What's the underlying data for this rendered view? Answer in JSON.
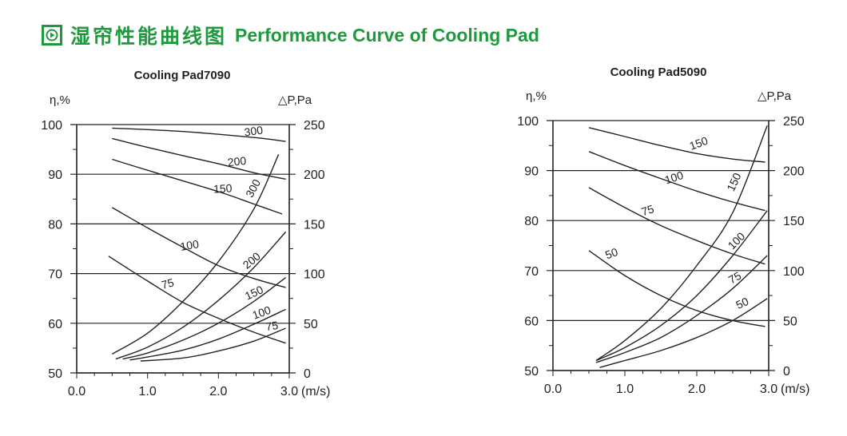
{
  "header": {
    "icon": "play-arrow-icon",
    "title_cn": "湿帘性能曲线图",
    "title_en": "Performance Curve of Cooling Pad",
    "color": "#1e9a3c"
  },
  "chart_data": [
    {
      "type": "line",
      "title": "Cooling Pad7090",
      "xlabel": "(m/s)",
      "ylabel_left": "η,%",
      "ylabel_right": "△P,Pa",
      "xlim": [
        0,
        3
      ],
      "ylim_left": [
        50,
        100
      ],
      "ylim_right": [
        0,
        250
      ],
      "x_ticks": [
        "0.0",
        "1.0",
        "2.0",
        "3.0"
      ],
      "y_left_ticks": [
        "50",
        "60",
        "70",
        "80",
        "90",
        "100"
      ],
      "y_right_ticks": [
        "0",
        "50",
        "100",
        "150",
        "200",
        "250"
      ],
      "grid": "horizontal",
      "efficiency_series": [
        {
          "name": "300",
          "x": [
            0.5,
            1.5,
            2.5,
            2.95
          ],
          "y": [
            99.3,
            98.6,
            97.4,
            96.6
          ]
        },
        {
          "name": "200",
          "x": [
            0.5,
            1.0,
            2.0,
            2.5,
            2.95
          ],
          "y": [
            97.2,
            95.4,
            92.1,
            90.3,
            89.0
          ]
        },
        {
          "name": "150",
          "x": [
            0.5,
            1.0,
            2.0,
            2.5,
            2.9
          ],
          "y": [
            93.0,
            90.8,
            86.5,
            84.0,
            82.0
          ]
        },
        {
          "name": "100",
          "x": [
            0.5,
            1.0,
            1.5,
            2.0,
            2.5,
            2.95
          ],
          "y": [
            83.3,
            79.2,
            75.3,
            71.6,
            69.0,
            67.2
          ]
        },
        {
          "name": "75",
          "x": [
            0.45,
            1.0,
            1.5,
            2.0,
            2.5,
            2.95
          ],
          "y": [
            73.5,
            68.5,
            64.2,
            61.0,
            58.2,
            56.0
          ]
        }
      ],
      "pressure_series": [
        {
          "name": "300",
          "x": [
            0.5,
            1.0,
            1.5,
            2.0,
            2.5,
            2.85
          ],
          "y": [
            19,
            40,
            72,
            112,
            165,
            220
          ]
        },
        {
          "name": "200",
          "x": [
            0.55,
            1.0,
            1.5,
            2.0,
            2.5,
            2.95
          ],
          "y": [
            14,
            26,
            46,
            73,
            106,
            142
          ]
        },
        {
          "name": "150",
          "x": [
            0.65,
            1.0,
            1.5,
            2.0,
            2.5,
            2.95
          ],
          "y": [
            14,
            20,
            33,
            50,
            72,
            96
          ]
        },
        {
          "name": "100",
          "x": [
            0.75,
            1.0,
            1.5,
            2.0,
            2.5,
            2.95
          ],
          "y": [
            13,
            16,
            23,
            34,
            49,
            64
          ]
        },
        {
          "name": "75",
          "x": [
            0.9,
            1.5,
            2.0,
            2.5,
            2.95
          ],
          "y": [
            12,
            15,
            22,
            32,
            45
          ]
        }
      ]
    },
    {
      "type": "line",
      "title": "Cooling Pad5090",
      "xlabel": "(m/s)",
      "ylabel_left": "η,%",
      "ylabel_right": "△P,Pa",
      "xlim": [
        0,
        3
      ],
      "ylim_left": [
        50,
        100
      ],
      "ylim_right": [
        0,
        250
      ],
      "x_ticks": [
        "0.0",
        "1.0",
        "2.0",
        "3.0"
      ],
      "y_left_ticks": [
        "50",
        "60",
        "70",
        "80",
        "90",
        "100"
      ],
      "y_right_ticks": [
        "0",
        "50",
        "100",
        "150",
        "200",
        "250"
      ],
      "grid": "horizontal",
      "efficiency_series": [
        {
          "name": "150",
          "x": [
            0.5,
            1.0,
            1.5,
            2.0,
            2.5,
            2.95
          ],
          "y": [
            98.6,
            96.8,
            95.0,
            93.4,
            92.3,
            91.7
          ]
        },
        {
          "name": "100",
          "x": [
            0.5,
            1.0,
            1.5,
            2.0,
            2.5,
            2.95
          ],
          "y": [
            93.8,
            91.0,
            88.4,
            85.9,
            83.7,
            82.0
          ]
        },
        {
          "name": "75",
          "x": [
            0.5,
            1.0,
            1.5,
            2.0,
            2.5,
            2.95
          ],
          "y": [
            86.6,
            82.6,
            79.0,
            76.0,
            73.3,
            71.3
          ]
        },
        {
          "name": "50",
          "x": [
            0.5,
            1.0,
            1.5,
            2.0,
            2.5,
            2.95
          ],
          "y": [
            74.0,
            69.0,
            65.0,
            62.0,
            60.0,
            58.8
          ]
        }
      ],
      "pressure_series": [
        {
          "name": "150",
          "x": [
            0.6,
            1.0,
            1.5,
            2.0,
            2.5,
            2.98
          ],
          "y": [
            10,
            30,
            62,
            105,
            158,
            245
          ]
        },
        {
          "name": "100",
          "x": [
            0.6,
            1.0,
            1.5,
            2.0,
            2.5,
            2.98
          ],
          "y": [
            10,
            23,
            45,
            75,
            115,
            160
          ]
        },
        {
          "name": "75",
          "x": [
            0.6,
            1.0,
            1.5,
            2.0,
            2.5,
            2.98
          ],
          "y": [
            8,
            18,
            33,
            55,
            82,
            115
          ]
        },
        {
          "name": "50",
          "x": [
            0.65,
            1.0,
            1.5,
            2.0,
            2.5,
            2.98
          ],
          "y": [
            3,
            10,
            20,
            33,
            50,
            72
          ]
        }
      ]
    }
  ]
}
